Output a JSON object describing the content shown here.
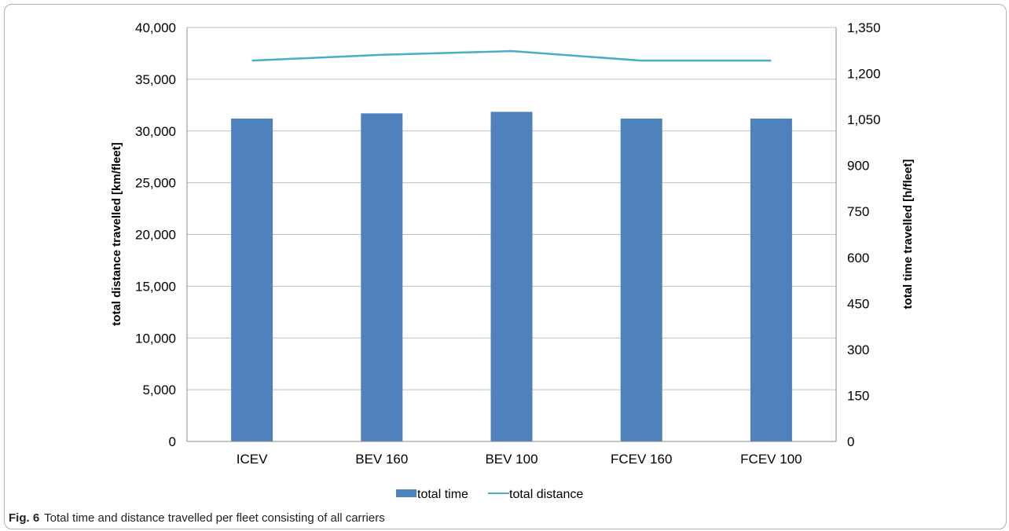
{
  "caption": {
    "label": "Fig. 6",
    "text": "Total time and distance travelled per fleet consisting of all carriers"
  },
  "chart_data": {
    "type": "bar",
    "categories": [
      "ICEV",
      "BEV 160",
      "BEV 100",
      "FCEV 160",
      "FCEV 100"
    ],
    "series": [
      {
        "name": "total time",
        "type": "bar",
        "axis": "left",
        "values": [
          31200,
          31700,
          31850,
          31200,
          31200
        ],
        "color": "#4f81bd"
      },
      {
        "name": "total distance",
        "type": "line",
        "axis": "right",
        "values": [
          1242,
          1261,
          1273,
          1242,
          1242
        ],
        "color": "#4bacc6"
      }
    ],
    "ylabel": "total distance travelled [km/fleet]",
    "ylabel_right": "total time travelled [h/fleet]",
    "ylim": [
      0,
      40000
    ],
    "ylim_right": [
      0,
      1350
    ],
    "yticks": [
      "0",
      "5,000",
      "10,000",
      "15,000",
      "20,000",
      "25,000",
      "30,000",
      "35,000",
      "40,000"
    ],
    "yticks_right": [
      "0",
      "150",
      "300",
      "450",
      "600",
      "750",
      "900",
      "1,050",
      "1,200",
      "1,350"
    ],
    "grid": true,
    "legend_position": "bottom"
  }
}
